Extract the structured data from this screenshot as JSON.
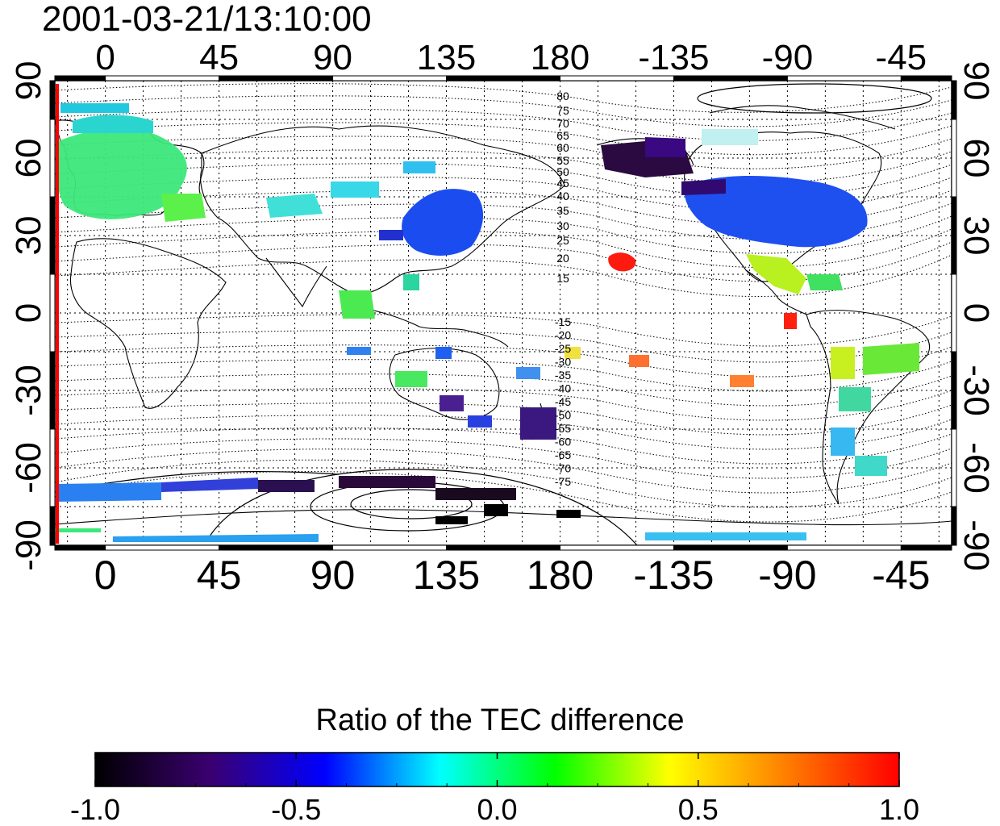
{
  "title": "2001-03-21/13:10:00",
  "map": {
    "lon_tick_labels": [
      "0",
      "45",
      "90",
      "135",
      "180",
      "-135",
      "-90",
      "-45"
    ],
    "lat_tick_labels": [
      "90",
      "60",
      "30",
      "0",
      "-30",
      "-60",
      "-90"
    ],
    "magnetic_contour_labels_north": [
      "80",
      "75",
      "70",
      "65",
      "60",
      "55",
      "50",
      "45",
      "40",
      "35",
      "30",
      "25",
      "20",
      "15"
    ],
    "magnetic_contour_labels_south": [
      "-15",
      "-20",
      "-25",
      "-30",
      "-35",
      "-40",
      "-45",
      "-50",
      "-55",
      "-60",
      "-65",
      "-70",
      "-75"
    ],
    "terminator_color": "#ff0000",
    "lon_range": [
      -20,
      335
    ],
    "lat_range": [
      -90,
      90
    ]
  },
  "colorbar": {
    "title": "Ratio of the TEC difference",
    "tick_labels": [
      "-1.0",
      "-0.5",
      "0.0",
      "0.5",
      "1.0"
    ],
    "range": [
      -1.0,
      1.0
    ],
    "colormap": [
      "#000000",
      "#3a0070",
      "#0000ff",
      "#00ffff",
      "#00ff00",
      "#ffff00",
      "#ff8000",
      "#ff0000"
    ]
  }
}
